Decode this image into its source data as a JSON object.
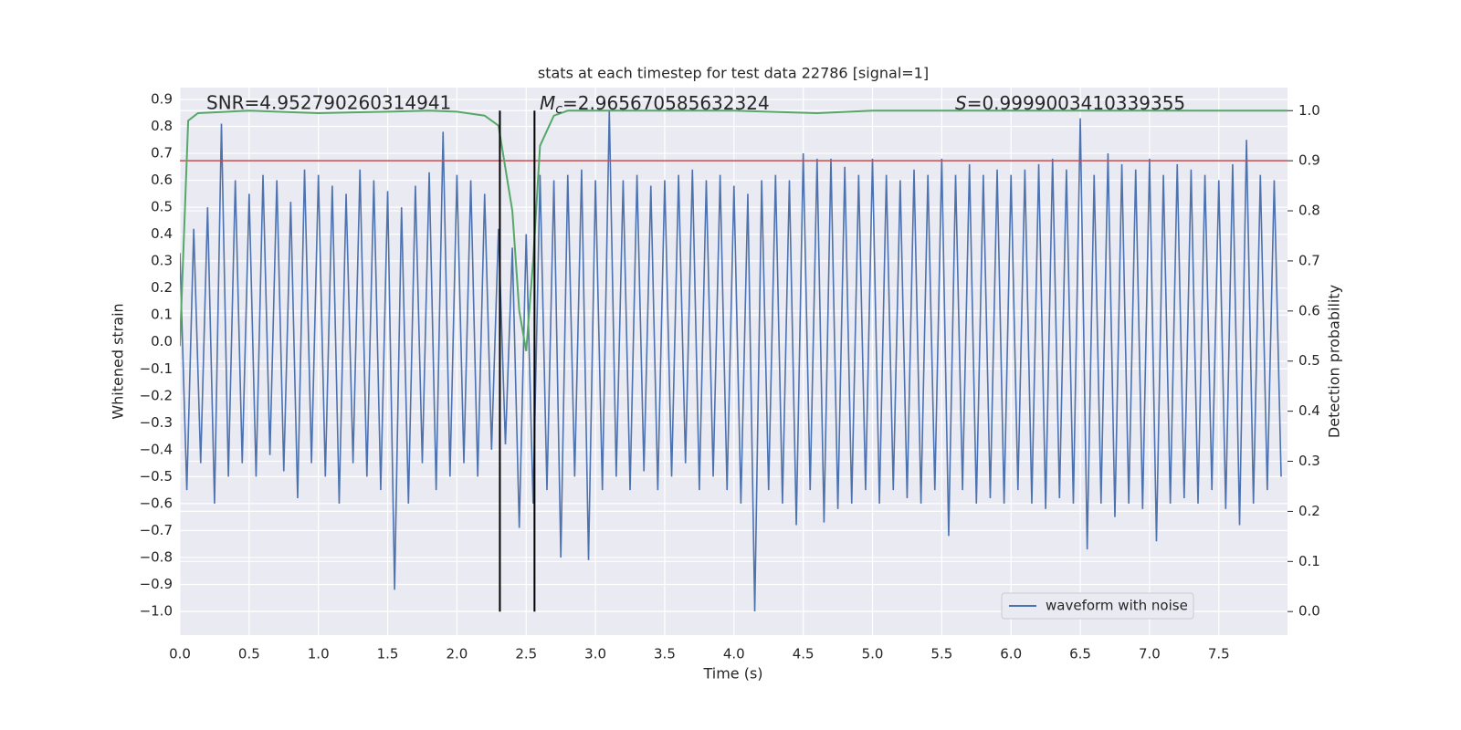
{
  "chart_data": {
    "type": "line",
    "title": "stats at each timestep for test data 22786 [signal=1]",
    "xlabel": "Time (s)",
    "ylabel": "Whitened strain",
    "y2label": "Detection probability",
    "annotations": {
      "snr": "SNR=4.952790260314941",
      "mc": {
        "symbol": "M",
        "sub": "c",
        "text": "=2.965670585632324"
      },
      "s": {
        "symbol": "S",
        "text": "=0.9999003410339355"
      }
    },
    "xlim": [
      0,
      7.996
    ],
    "ylim": [
      -1.088,
      0.944
    ],
    "y2lim": [
      -0.047,
      1.046
    ],
    "xticks": [
      {
        "value": 0,
        "label": "0.0"
      },
      {
        "value": 0.5,
        "label": "0.5"
      },
      {
        "value": 1,
        "label": "1.0"
      },
      {
        "value": 1.5,
        "label": "1.5"
      },
      {
        "value": 2,
        "label": "2.0"
      },
      {
        "value": 2.5,
        "label": "2.5"
      },
      {
        "value": 3,
        "label": "3.0"
      },
      {
        "value": 3.5,
        "label": "3.5"
      },
      {
        "value": 4,
        "label": "4.0"
      },
      {
        "value": 4.5,
        "label": "4.5"
      },
      {
        "value": 5,
        "label": "5.0"
      },
      {
        "value": 5.5,
        "label": "5.5"
      },
      {
        "value": 6,
        "label": "6.0"
      },
      {
        "value": 6.5,
        "label": "6.5"
      },
      {
        "value": 7,
        "label": "7.0"
      },
      {
        "value": 7.5,
        "label": "7.5"
      }
    ],
    "yticks": [
      {
        "value": -1.0,
        "label": "−1.0"
      },
      {
        "value": -0.9,
        "label": "−0.9"
      },
      {
        "value": -0.8,
        "label": "−0.8"
      },
      {
        "value": -0.7,
        "label": "−0.7"
      },
      {
        "value": -0.6,
        "label": "−0.6"
      },
      {
        "value": -0.5,
        "label": "−0.5"
      },
      {
        "value": -0.4,
        "label": "−0.4"
      },
      {
        "value": -0.3,
        "label": "−0.3"
      },
      {
        "value": -0.2,
        "label": "−0.2"
      },
      {
        "value": -0.1,
        "label": "−0.1"
      },
      {
        "value": 0,
        "label": "0.0"
      },
      {
        "value": 0.1,
        "label": "0.1"
      },
      {
        "value": 0.2,
        "label": "0.2"
      },
      {
        "value": 0.3,
        "label": "0.3"
      },
      {
        "value": 0.4,
        "label": "0.4"
      },
      {
        "value": 0.5,
        "label": "0.5"
      },
      {
        "value": 0.6,
        "label": "0.6"
      },
      {
        "value": 0.7,
        "label": "0.7"
      },
      {
        "value": 0.8,
        "label": "0.8"
      },
      {
        "value": 0.9,
        "label": "0.9"
      }
    ],
    "y2ticks": [
      {
        "value": 0,
        "label": "0.0"
      },
      {
        "value": 0.1,
        "label": "0.1"
      },
      {
        "value": 0.2,
        "label": "0.2"
      },
      {
        "value": 0.3,
        "label": "0.3"
      },
      {
        "value": 0.4,
        "label": "0.4"
      },
      {
        "value": 0.5,
        "label": "0.5"
      },
      {
        "value": 0.6,
        "label": "0.6"
      },
      {
        "value": 0.7,
        "label": "0.7"
      },
      {
        "value": 0.8,
        "label": "0.8"
      },
      {
        "value": 0.9,
        "label": "0.9"
      },
      {
        "value": 1,
        "label": "1.0"
      }
    ],
    "grid": true,
    "legend": "lower right",
    "series": [
      {
        "name": "waveform with noise",
        "color": "#4c72b0",
        "x": [
          0,
          0.05,
          0.1,
          0.15,
          0.2,
          0.25,
          0.3,
          0.35,
          0.4,
          0.45,
          0.5,
          0.55,
          0.6,
          0.65,
          0.7,
          0.75,
          0.8,
          0.85,
          0.9,
          0.95,
          1,
          1.05,
          1.1,
          1.15,
          1.2,
          1.25,
          1.3,
          1.35,
          1.4,
          1.45,
          1.5,
          1.55,
          1.6,
          1.65,
          1.7,
          1.75,
          1.8,
          1.85,
          1.9,
          1.95,
          2,
          2.05,
          2.1,
          2.15,
          2.2,
          2.25,
          2.3,
          2.35,
          2.4,
          2.45,
          2.5,
          2.55,
          2.6,
          2.65,
          2.7,
          2.75,
          2.8,
          2.85,
          2.9,
          2.95,
          3,
          3.05,
          3.1,
          3.15,
          3.2,
          3.25,
          3.3,
          3.35,
          3.4,
          3.45,
          3.5,
          3.55,
          3.6,
          3.65,
          3.7,
          3.75,
          3.8,
          3.85,
          3.9,
          3.95,
          4,
          4.05,
          4.1,
          4.15,
          4.2,
          4.25,
          4.3,
          4.35,
          4.4,
          4.45,
          4.5,
          4.55,
          4.6,
          4.65,
          4.7,
          4.75,
          4.8,
          4.85,
          4.9,
          4.95,
          5,
          5.05,
          5.1,
          5.15,
          5.2,
          5.25,
          5.3,
          5.35,
          5.4,
          5.45,
          5.5,
          5.55,
          5.6,
          5.65,
          5.7,
          5.75,
          5.8,
          5.85,
          5.9,
          5.95,
          6,
          6.05,
          6.1,
          6.15,
          6.2,
          6.25,
          6.3,
          6.35,
          6.4,
          6.45,
          6.5,
          6.55,
          6.6,
          6.65,
          6.7,
          6.75,
          6.8,
          6.85,
          6.9,
          6.95,
          7,
          7.05,
          7.1,
          7.15,
          7.2,
          7.25,
          7.3,
          7.35,
          7.4,
          7.45,
          7.5,
          7.55,
          7.6,
          7.65,
          7.7,
          7.75,
          7.8,
          7.85,
          7.9,
          7.95
        ],
        "values": [
          0.33,
          -0.55,
          0.42,
          -0.45,
          0.5,
          -0.6,
          0.81,
          -0.5,
          0.6,
          -0.45,
          0.55,
          -0.5,
          0.62,
          -0.42,
          0.6,
          -0.48,
          0.52,
          -0.58,
          0.64,
          -0.45,
          0.62,
          -0.5,
          0.58,
          -0.6,
          0.55,
          -0.45,
          0.64,
          -0.5,
          0.6,
          -0.55,
          0.56,
          -0.92,
          0.5,
          -0.6,
          0.58,
          -0.45,
          0.63,
          -0.55,
          0.78,
          -0.5,
          0.62,
          -0.45,
          0.6,
          -0.5,
          0.55,
          -0.4,
          0.42,
          -0.38,
          0.35,
          -0.69,
          0.4,
          -0.6,
          0.62,
          -0.55,
          0.6,
          -0.8,
          0.62,
          -0.5,
          0.64,
          -0.81,
          0.6,
          -0.55,
          0.86,
          -0.5,
          0.6,
          -0.55,
          0.62,
          -0.48,
          0.58,
          -0.55,
          0.6,
          -0.5,
          0.62,
          -0.45,
          0.64,
          -0.55,
          0.6,
          -0.5,
          0.62,
          -0.55,
          0.58,
          -0.6,
          0.55,
          -1.0,
          0.6,
          -0.55,
          0.62,
          -0.6,
          0.6,
          -0.68,
          0.7,
          -0.55,
          0.68,
          -0.67,
          0.68,
          -0.62,
          0.65,
          -0.6,
          0.62,
          -0.55,
          0.68,
          -0.6,
          0.62,
          -0.55,
          0.6,
          -0.58,
          0.64,
          -0.6,
          0.62,
          -0.55,
          0.68,
          -0.72,
          0.62,
          -0.55,
          0.66,
          -0.6,
          0.62,
          -0.58,
          0.64,
          -0.6,
          0.62,
          -0.55,
          0.64,
          -0.6,
          0.66,
          -0.62,
          0.68,
          -0.58,
          0.64,
          -0.6,
          0.83,
          -0.77,
          0.62,
          -0.6,
          0.7,
          -0.65,
          0.66,
          -0.6,
          0.64,
          -0.62,
          0.68,
          -0.74,
          0.62,
          -0.6,
          0.66,
          -0.58,
          0.64,
          -0.6,
          0.62,
          -0.55,
          0.6,
          -0.62,
          0.66,
          -0.68,
          0.75,
          -0.6,
          0.62,
          -0.55,
          0.6,
          -0.5
        ]
      }
    ],
    "probability": {
      "color": "#55a868",
      "axis": "y2",
      "x": [
        0,
        0.06,
        0.13,
        0.5,
        1.0,
        1.5,
        1.8,
        2.0,
        2.2,
        2.3,
        2.4,
        2.45,
        2.5,
        2.55,
        2.6,
        2.7,
        2.8,
        3.0,
        4.0,
        4.6,
        5.0,
        7.996
      ],
      "values": [
        0.53,
        0.98,
        0.995,
        1.0,
        0.995,
        0.998,
        1.0,
        0.998,
        0.99,
        0.97,
        0.8,
        0.6,
        0.52,
        0.7,
        0.93,
        0.99,
        1.0,
        1.0,
        1.0,
        0.995,
        1.0,
        1.0
      ]
    },
    "threshold": {
      "value": 0.9,
      "color": "#c44e52",
      "axis": "y2"
    },
    "vlines": {
      "x": [
        2.31,
        2.56
      ],
      "color": "#000000"
    }
  }
}
